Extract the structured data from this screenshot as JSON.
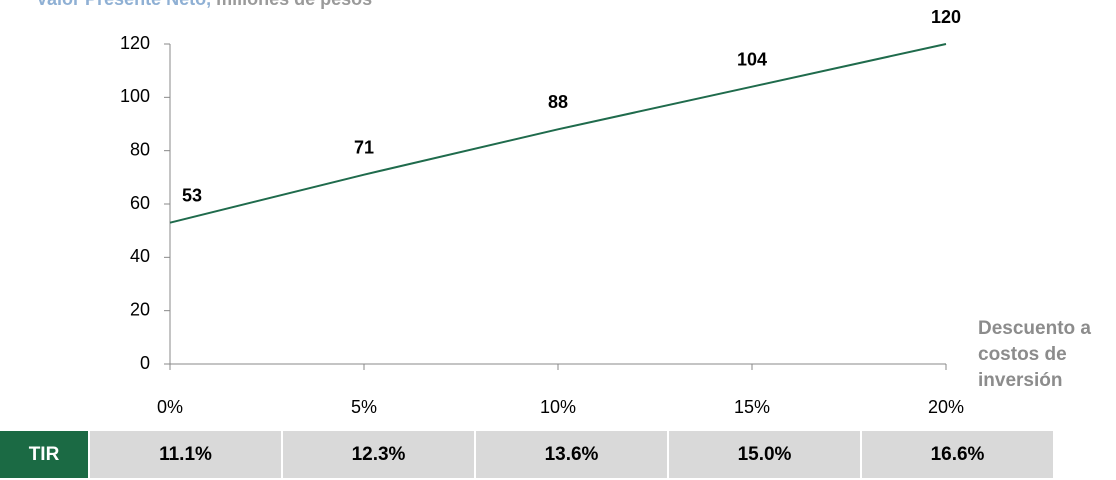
{
  "chart_data": {
    "type": "line",
    "title": "Valor Presente Neto,",
    "subtitle": "millones de pesos",
    "x_label": "Descuento a costos de inversión",
    "x": [
      0,
      5,
      10,
      15,
      20
    ],
    "xlim": [
      0,
      20
    ],
    "xticks": [
      {
        "value": 0,
        "label": "0%"
      },
      {
        "value": 5,
        "label": "5%"
      },
      {
        "value": 10,
        "label": "10%"
      },
      {
        "value": 15,
        "label": "15%"
      },
      {
        "value": 20,
        "label": "20%"
      }
    ],
    "values": [
      53,
      71,
      88,
      104,
      120
    ],
    "color": "#1f6b4c",
    "ylim": [
      0,
      120
    ],
    "yticks": [
      0,
      20,
      40,
      60,
      80,
      100,
      120
    ]
  },
  "table": {
    "header": "TIR",
    "cells": [
      "11.1%",
      "12.3%",
      "13.6%",
      "15.0%",
      "16.6%"
    ]
  }
}
